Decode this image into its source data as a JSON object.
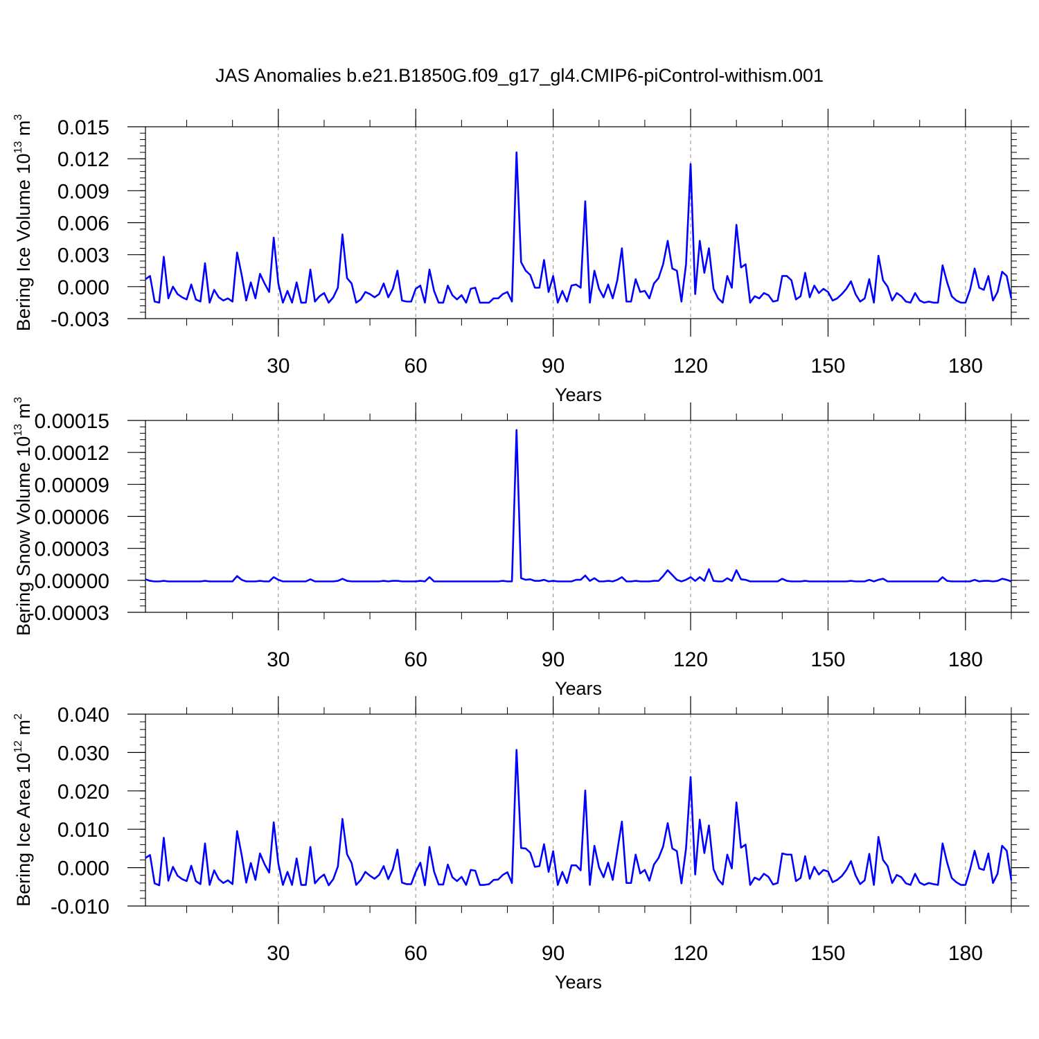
{
  "title": "JAS Anomalies b.e21.B1850G.f09_g17_gl4.CMIP6-piControl-withism.001",
  "line_color": "#0000ff",
  "chart_data": [
    {
      "type": "line",
      "xlabel": "Years",
      "ylabel_prefix": "Bering Ice Volume 10",
      "ylabel_exp": "13",
      "ylabel_unit": " m",
      "ylabel_unit_exp": "3",
      "xlim": [
        1,
        190
      ],
      "ylim": [
        -0.003,
        0.015
      ],
      "xticks": [
        30,
        60,
        90,
        120,
        150,
        180
      ],
      "xtick_labels": [
        "30",
        "60",
        "90",
        "120",
        "150",
        "180"
      ],
      "yticks": [
        -0.003,
        0.0,
        0.003,
        0.006,
        0.009,
        0.012,
        0.015
      ],
      "ytick_labels": [
        "-0.003",
        "0.000",
        "0.003",
        "0.006",
        "0.009",
        "0.012",
        "0.015"
      ],
      "grid": "vertical dashed at major x ticks",
      "x_start": 1,
      "values": [
        0.0007,
        0.001,
        -0.0014,
        -0.0015,
        0.0028,
        -0.0011,
        0.0,
        -0.0007,
        -0.001,
        -0.0012,
        0.0002,
        -0.0012,
        -0.0014,
        0.0022,
        -0.0015,
        -0.0003,
        -0.001,
        -0.0013,
        -0.0011,
        -0.0014,
        0.0032,
        0.0011,
        -0.0013,
        0.0004,
        -0.0011,
        0.0012,
        0.0003,
        -0.0005,
        0.0046,
        0.0003,
        -0.0015,
        -0.0004,
        -0.0015,
        0.0004,
        -0.0015,
        -0.0015,
        0.0016,
        -0.0014,
        -0.0009,
        -0.0006,
        -0.0015,
        -0.001,
        -0.0001,
        0.0049,
        0.0008,
        0.0003,
        -0.0015,
        -0.0012,
        -0.0005,
        -0.0007,
        -0.001,
        -0.0007,
        0.0003,
        -0.001,
        -0.0002,
        0.0015,
        -0.0013,
        -0.0014,
        -0.0014,
        -0.0002,
        0.0001,
        -0.0015,
        0.0016,
        -0.0004,
        -0.0015,
        -0.0015,
        0.0001,
        -0.0008,
        -0.0012,
        -0.0008,
        -0.0015,
        -0.0002,
        -0.0001,
        -0.0015,
        -0.0015,
        -0.0015,
        -0.0011,
        -0.0011,
        -0.0007,
        -0.0005,
        -0.0014,
        0.0126,
        0.0023,
        0.0015,
        0.0011,
        -0.0001,
        -0.0001,
        0.0025,
        -0.0005,
        0.001,
        -0.0015,
        -0.0004,
        -0.0014,
        0.0001,
        0.0002,
        -0.0001,
        0.008,
        -0.0015,
        0.0015,
        -0.0002,
        -0.001,
        0.0002,
        -0.0011,
        0.0006,
        0.0036,
        -0.0014,
        -0.0014,
        0.0007,
        -0.0005,
        -0.0004,
        -0.0011,
        0.0003,
        0.0008,
        0.0021,
        0.0043,
        0.0017,
        0.0015,
        -0.0014,
        0.0021,
        0.0115,
        -0.0007,
        0.0043,
        0.0013,
        0.0036,
        -0.0002,
        -0.0011,
        -0.0015,
        0.001,
        -0.0001,
        0.0058,
        0.0018,
        0.0021,
        -0.0015,
        -0.0009,
        -0.0011,
        -0.0006,
        -0.0008,
        -0.0014,
        -0.0013,
        0.001,
        0.001,
        0.0006,
        -0.0012,
        -0.0009,
        0.0013,
        -0.001,
        0.0001,
        -0.0006,
        -0.0002,
        -0.0005,
        -0.0013,
        -0.0011,
        -0.0007,
        -0.0002,
        0.0005,
        -0.0007,
        -0.0014,
        -0.0011,
        0.0007,
        -0.0015,
        0.0029,
        0.0006,
        0.0,
        -0.0013,
        -0.0006,
        -0.0009,
        -0.0014,
        -0.0015,
        -0.0006,
        -0.0013,
        -0.0015,
        -0.0014,
        -0.0015,
        -0.0015,
        0.002,
        0.0004,
        -0.0009,
        -0.0013,
        -0.0015,
        -0.0015,
        -0.0003,
        0.0017,
        -0.0001,
        -0.0003,
        0.001,
        -0.0013,
        -0.0005,
        0.0014,
        0.001,
        -0.0011
      ]
    },
    {
      "type": "line",
      "xlabel": "Years",
      "ylabel_prefix": "Bering Snow Volume 10",
      "ylabel_exp": "13",
      "ylabel_unit": " m",
      "ylabel_unit_exp": "3",
      "xlim": [
        1,
        190
      ],
      "ylim": [
        -3e-05,
        0.00015
      ],
      "xticks": [
        30,
        60,
        90,
        120,
        150,
        180
      ],
      "xtick_labels": [
        "30",
        "60",
        "90",
        "120",
        "150",
        "180"
      ],
      "yticks": [
        -3e-05,
        0.0,
        3e-05,
        6e-05,
        9e-05,
        0.00012,
        0.00015
      ],
      "ytick_labels": [
        "-0.00003",
        "0.00000",
        "0.00003",
        "0.00006",
        "0.00009",
        "0.00012",
        "0.00015"
      ],
      "grid": "vertical dashed at major x ticks",
      "x_start": 1,
      "values": [
        1e-06,
        -5e-07,
        -1e-06,
        -1e-06,
        -5e-07,
        -1e-06,
        -1e-06,
        -1e-06,
        -1e-06,
        -1e-06,
        -1e-06,
        -1e-06,
        -1e-06,
        -5e-07,
        -1e-06,
        -1e-06,
        -1e-06,
        -1e-06,
        -1e-06,
        -1e-06,
        4e-06,
        5e-07,
        -1e-06,
        -1e-06,
        -1e-06,
        -5e-07,
        -1e-06,
        -1e-06,
        3e-06,
        5e-07,
        -1e-06,
        -1e-06,
        -1e-06,
        -1e-06,
        -1e-06,
        -1e-06,
        1e-06,
        -1e-06,
        -1e-06,
        -1e-06,
        -1e-06,
        -1e-06,
        -5e-07,
        1.5e-06,
        -5e-07,
        -1e-06,
        -1e-06,
        -1e-06,
        -1e-06,
        -1e-06,
        -1e-06,
        -1e-06,
        -5e-07,
        -1e-06,
        -5e-07,
        -5e-07,
        -1e-06,
        -1e-06,
        -1e-06,
        -1e-06,
        -5e-07,
        -1e-06,
        3e-06,
        -1e-06,
        -1e-06,
        -1e-06,
        -1e-06,
        -1e-06,
        -1e-06,
        -1e-06,
        -1e-06,
        -1e-06,
        -1e-06,
        -1e-06,
        -1e-06,
        -1e-06,
        -1e-06,
        -1e-06,
        -5e-07,
        -1e-06,
        -1e-06,
        0.000141,
        2e-06,
        5e-07,
        1e-06,
        -5e-07,
        -5e-07,
        5e-07,
        -1e-06,
        -5e-07,
        -1e-06,
        -1e-06,
        -1e-06,
        -1e-06,
        5e-07,
        5e-07,
        4.5e-06,
        -5e-07,
        2e-06,
        -1e-06,
        -1e-06,
        -5e-07,
        -1e-06,
        5e-07,
        3e-06,
        -1e-06,
        -1e-06,
        -5e-07,
        -1e-06,
        -1e-06,
        -1e-06,
        -5e-07,
        -5e-07,
        4e-06,
        9.5e-06,
        5e-06,
        5e-07,
        -1e-06,
        5e-07,
        3e-06,
        -5e-07,
        3e-06,
        -5e-07,
        1.05e-05,
        -5e-07,
        -1e-06,
        -1e-06,
        2e-06,
        -5e-07,
        9.5e-06,
        1e-06,
        5e-07,
        -1e-06,
        -1e-06,
        -1e-06,
        -1e-06,
        -1e-06,
        -1e-06,
        -1e-06,
        1.5e-06,
        -5e-07,
        -1e-06,
        -1e-06,
        -1e-06,
        -5e-07,
        -1e-06,
        -1e-06,
        -1e-06,
        -1e-06,
        -1e-06,
        -1e-06,
        -1e-06,
        -1e-06,
        -1e-06,
        -5e-07,
        -1e-06,
        -1e-06,
        -1e-06,
        5e-07,
        -1e-06,
        5e-07,
        1.5e-06,
        -1e-06,
        -1e-06,
        -1e-06,
        -1e-06,
        -1e-06,
        -1e-06,
        -1e-06,
        -1e-06,
        -1e-06,
        -1e-06,
        -1e-06,
        -1e-06,
        3e-06,
        -5e-07,
        -1e-06,
        -1e-06,
        -1e-06,
        -1e-06,
        -1e-06,
        5e-07,
        -1e-06,
        -5e-07,
        -5e-07,
        -1e-06,
        -5e-07,
        1.5e-06,
        5e-07,
        -1e-06
      ]
    },
    {
      "type": "line",
      "xlabel": "Years",
      "ylabel_prefix": "Bering Ice Area 10",
      "ylabel_exp": "12",
      "ylabel_unit": " m",
      "ylabel_unit_exp": "2",
      "xlim": [
        1,
        190
      ],
      "ylim": [
        -0.01,
        0.04
      ],
      "xticks": [
        30,
        60,
        90,
        120,
        150,
        180
      ],
      "xtick_labels": [
        "30",
        "60",
        "90",
        "120",
        "150",
        "180"
      ],
      "yticks": [
        -0.01,
        0.0,
        0.01,
        0.02,
        0.03,
        0.04
      ],
      "ytick_labels": [
        "-0.010",
        "0.000",
        "0.010",
        "0.020",
        "0.030",
        "0.040"
      ],
      "grid": "vertical dashed at major x ticks",
      "x_start": 1,
      "values": [
        0.0025,
        0.0033,
        -0.0041,
        -0.0046,
        0.0078,
        -0.0034,
        0.0002,
        -0.0021,
        -0.003,
        -0.0035,
        0.0005,
        -0.0035,
        -0.0043,
        0.0063,
        -0.0045,
        -0.0007,
        -0.003,
        -0.004,
        -0.0033,
        -0.0043,
        0.0095,
        0.0033,
        -0.0039,
        0.0012,
        -0.0032,
        0.0037,
        0.0009,
        -0.0013,
        0.0118,
        0.0011,
        -0.0045,
        -0.0011,
        -0.0045,
        0.0024,
        -0.0045,
        -0.0045,
        0.0054,
        -0.0041,
        -0.0027,
        -0.0018,
        -0.0046,
        -0.003,
        0.0003,
        0.0127,
        0.0035,
        0.0012,
        -0.0045,
        -0.0032,
        -0.0011,
        -0.0021,
        -0.0029,
        -0.0019,
        0.0004,
        -0.003,
        -0.0004,
        0.0047,
        -0.0039,
        -0.0043,
        -0.0043,
        -0.0011,
        0.0013,
        -0.0046,
        0.0054,
        -0.001,
        -0.0044,
        -0.0044,
        0.0008,
        -0.0025,
        -0.0035,
        -0.0024,
        -0.0045,
        -0.0006,
        -0.0008,
        -0.0045,
        -0.0045,
        -0.0043,
        -0.0032,
        -0.0031,
        -0.0019,
        -0.0012,
        -0.004,
        0.0307,
        0.0051,
        0.005,
        0.0039,
        0.0002,
        0.0004,
        0.0061,
        -0.0011,
        0.0043,
        -0.0045,
        -0.0011,
        -0.004,
        0.0006,
        0.0006,
        -0.0007,
        0.0201,
        -0.0045,
        0.0057,
        0.0001,
        -0.0025,
        0.0013,
        -0.0032,
        0.0044,
        0.012,
        -0.004,
        -0.004,
        0.0034,
        -0.0015,
        -0.0006,
        -0.0034,
        0.0008,
        0.0025,
        0.0055,
        0.0116,
        0.005,
        0.0043,
        -0.0041,
        0.005,
        0.0236,
        -0.0018,
        0.0125,
        0.0038,
        0.011,
        -0.0004,
        -0.0031,
        -0.0044,
        0.0034,
        -0.0002,
        0.017,
        0.0052,
        0.006,
        -0.0045,
        -0.0026,
        -0.0032,
        -0.0016,
        -0.0024,
        -0.0044,
        -0.004,
        0.0037,
        0.0034,
        0.0034,
        -0.0035,
        -0.0027,
        0.003,
        -0.0029,
        0.0002,
        -0.0018,
        -0.0006,
        -0.001,
        -0.0038,
        -0.0032,
        -0.0022,
        -0.0006,
        0.0017,
        -0.002,
        -0.0043,
        -0.0033,
        0.0036,
        -0.0045,
        0.008,
        0.002,
        0.0004,
        -0.004,
        -0.0019,
        -0.0025,
        -0.0041,
        -0.0045,
        -0.0016,
        -0.0039,
        -0.0045,
        -0.004,
        -0.0043,
        -0.0045,
        0.0063,
        0.0013,
        -0.0027,
        -0.0038,
        -0.0045,
        -0.0045,
        -0.0005,
        0.0044,
        -0.0002,
        -0.0006,
        0.0037,
        -0.004,
        -0.0016,
        0.0057,
        0.0044,
        -0.0033
      ]
    }
  ]
}
